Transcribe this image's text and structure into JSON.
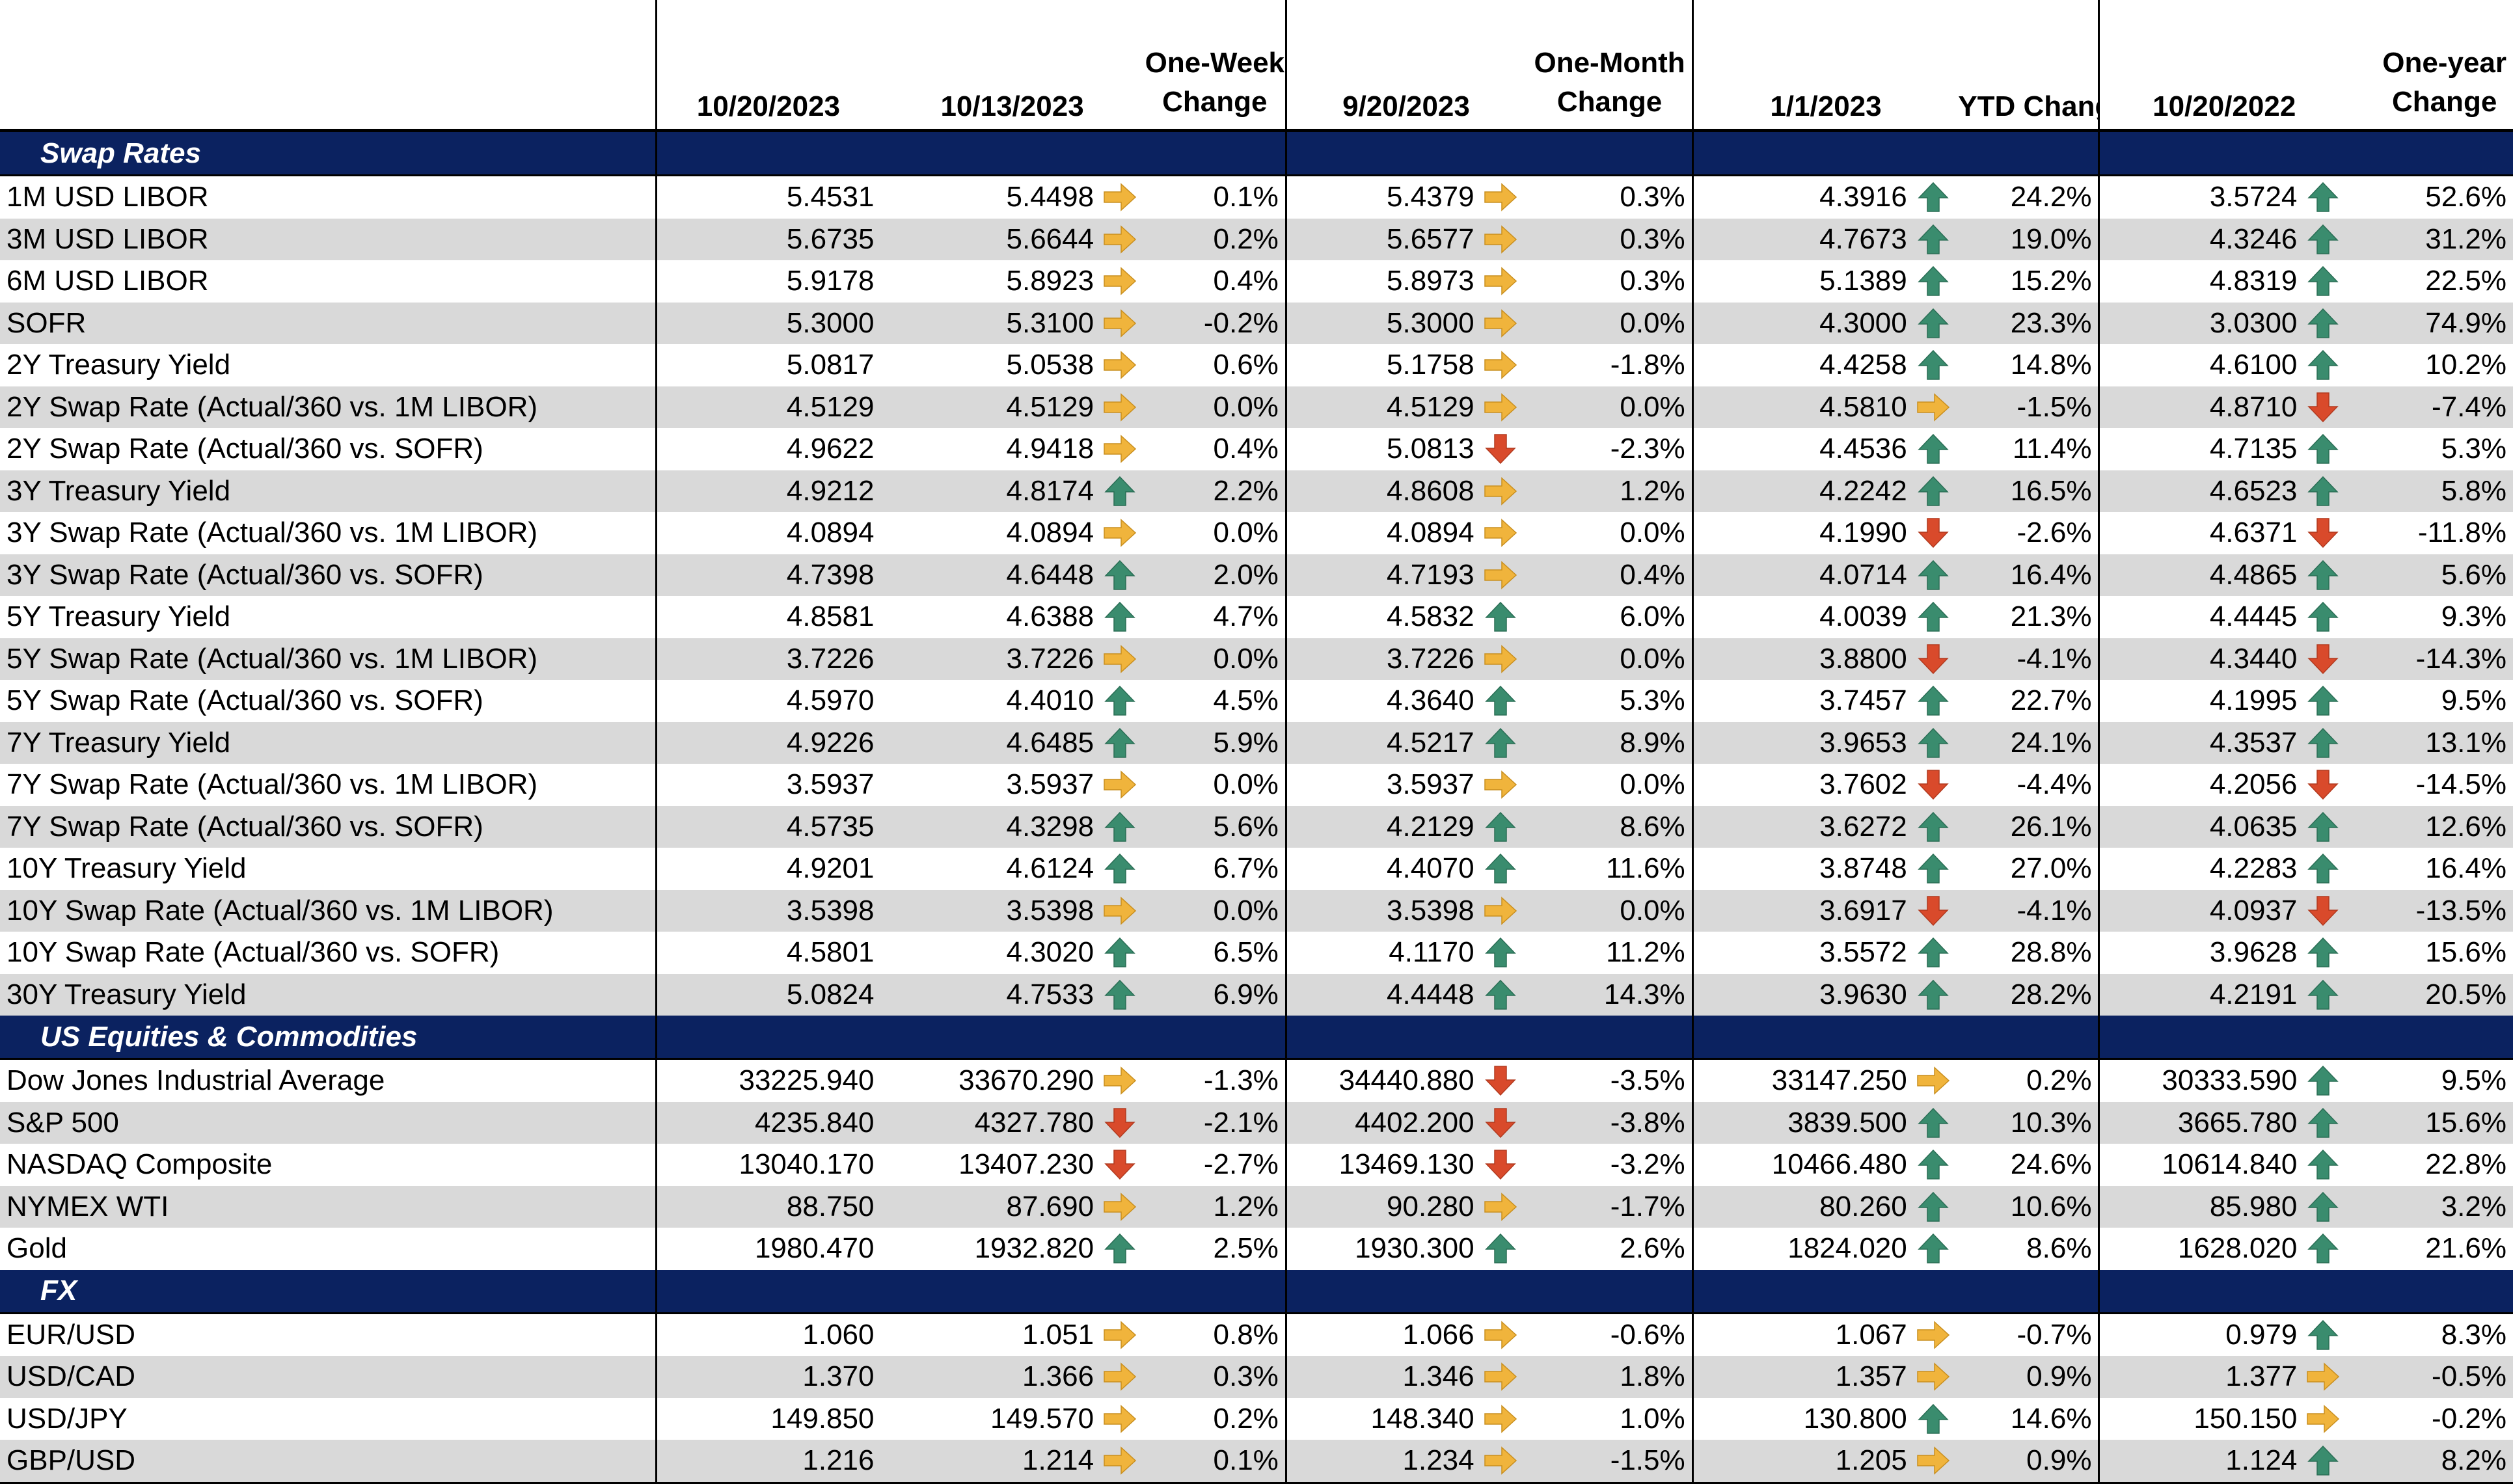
{
  "headers": {
    "c1": "10/20/2023",
    "c2": "10/13/2023",
    "c3a": "One-Week",
    "c3b": "Change",
    "c4": "9/20/2023",
    "c5a": "One-Month",
    "c5b": "Change",
    "c6": "1/1/2023",
    "c7": "YTD Change",
    "c8": "10/20/2022",
    "c9a": "One-year",
    "c9b": "Change"
  },
  "colors": {
    "section_bg": "#0b2260",
    "shade": "#d9d9d9",
    "up": "#3a8c6e",
    "down": "#d94a2b",
    "flat": "#f0b43c"
  },
  "sections": [
    {
      "title": "Swap Rates",
      "rows": [
        {
          "name": "1M USD LIBOR",
          "v1": "5.4531",
          "v2": "5.4498",
          "a2": "right",
          "p2": "0.1%",
          "v3": "5.4379",
          "a3": "right",
          "p3": "0.3%",
          "v4": "4.3916",
          "a4": "up",
          "p4": "24.2%",
          "v5": "3.5724",
          "a5": "up",
          "p5": "52.6%"
        },
        {
          "name": "3M USD LIBOR",
          "v1": "5.6735",
          "v2": "5.6644",
          "a2": "right",
          "p2": "0.2%",
          "v3": "5.6577",
          "a3": "right",
          "p3": "0.3%",
          "v4": "4.7673",
          "a4": "up",
          "p4": "19.0%",
          "v5": "4.3246",
          "a5": "up",
          "p5": "31.2%"
        },
        {
          "name": "6M USD LIBOR",
          "v1": "5.9178",
          "v2": "5.8923",
          "a2": "right",
          "p2": "0.4%",
          "v3": "5.8973",
          "a3": "right",
          "p3": "0.3%",
          "v4": "5.1389",
          "a4": "up",
          "p4": "15.2%",
          "v5": "4.8319",
          "a5": "up",
          "p5": "22.5%"
        },
        {
          "name": "SOFR",
          "v1": "5.3000",
          "v2": "5.3100",
          "a2": "right",
          "p2": "-0.2%",
          "v3": "5.3000",
          "a3": "right",
          "p3": "0.0%",
          "v4": "4.3000",
          "a4": "up",
          "p4": "23.3%",
          "v5": "3.0300",
          "a5": "up",
          "p5": "74.9%"
        },
        {
          "name": "2Y Treasury Yield",
          "v1": "5.0817",
          "v2": "5.0538",
          "a2": "right",
          "p2": "0.6%",
          "v3": "5.1758",
          "a3": "right",
          "p3": "-1.8%",
          "v4": "4.4258",
          "a4": "up",
          "p4": "14.8%",
          "v5": "4.6100",
          "a5": "up",
          "p5": "10.2%"
        },
        {
          "name": "2Y Swap Rate (Actual/360 vs. 1M LIBOR)",
          "v1": "4.5129",
          "v2": "4.5129",
          "a2": "right",
          "p2": "0.0%",
          "v3": "4.5129",
          "a3": "right",
          "p3": "0.0%",
          "v4": "4.5810",
          "a4": "right",
          "p4": "-1.5%",
          "v5": "4.8710",
          "a5": "down",
          "p5": "-7.4%"
        },
        {
          "name": "2Y Swap Rate (Actual/360 vs. SOFR)",
          "v1": "4.9622",
          "v2": "4.9418",
          "a2": "right",
          "p2": "0.4%",
          "v3": "5.0813",
          "a3": "down",
          "p3": "-2.3%",
          "v4": "4.4536",
          "a4": "up",
          "p4": "11.4%",
          "v5": "4.7135",
          "a5": "up",
          "p5": "5.3%"
        },
        {
          "name": "3Y Treasury Yield",
          "v1": "4.9212",
          "v2": "4.8174",
          "a2": "up",
          "p2": "2.2%",
          "v3": "4.8608",
          "a3": "right",
          "p3": "1.2%",
          "v4": "4.2242",
          "a4": "up",
          "p4": "16.5%",
          "v5": "4.6523",
          "a5": "up",
          "p5": "5.8%"
        },
        {
          "name": "3Y Swap Rate (Actual/360 vs. 1M LIBOR)",
          "v1": "4.0894",
          "v2": "4.0894",
          "a2": "right",
          "p2": "0.0%",
          "v3": "4.0894",
          "a3": "right",
          "p3": "0.0%",
          "v4": "4.1990",
          "a4": "down",
          "p4": "-2.6%",
          "v5": "4.6371",
          "a5": "down",
          "p5": "-11.8%"
        },
        {
          "name": "3Y Swap Rate (Actual/360 vs. SOFR)",
          "v1": "4.7398",
          "v2": "4.6448",
          "a2": "up",
          "p2": "2.0%",
          "v3": "4.7193",
          "a3": "right",
          "p3": "0.4%",
          "v4": "4.0714",
          "a4": "up",
          "p4": "16.4%",
          "v5": "4.4865",
          "a5": "up",
          "p5": "5.6%"
        },
        {
          "name": "5Y Treasury Yield",
          "v1": "4.8581",
          "v2": "4.6388",
          "a2": "up",
          "p2": "4.7%",
          "v3": "4.5832",
          "a3": "up",
          "p3": "6.0%",
          "v4": "4.0039",
          "a4": "up",
          "p4": "21.3%",
          "v5": "4.4445",
          "a5": "up",
          "p5": "9.3%"
        },
        {
          "name": "5Y Swap Rate (Actual/360 vs. 1M LIBOR)",
          "v1": "3.7226",
          "v2": "3.7226",
          "a2": "right",
          "p2": "0.0%",
          "v3": "3.7226",
          "a3": "right",
          "p3": "0.0%",
          "v4": "3.8800",
          "a4": "down",
          "p4": "-4.1%",
          "v5": "4.3440",
          "a5": "down",
          "p5": "-14.3%"
        },
        {
          "name": "5Y Swap Rate (Actual/360 vs. SOFR)",
          "v1": "4.5970",
          "v2": "4.4010",
          "a2": "up",
          "p2": "4.5%",
          "v3": "4.3640",
          "a3": "up",
          "p3": "5.3%",
          "v4": "3.7457",
          "a4": "up",
          "p4": "22.7%",
          "v5": "4.1995",
          "a5": "up",
          "p5": "9.5%"
        },
        {
          "name": "7Y Treasury Yield",
          "v1": "4.9226",
          "v2": "4.6485",
          "a2": "up",
          "p2": "5.9%",
          "v3": "4.5217",
          "a3": "up",
          "p3": "8.9%",
          "v4": "3.9653",
          "a4": "up",
          "p4": "24.1%",
          "v5": "4.3537",
          "a5": "up",
          "p5": "13.1%"
        },
        {
          "name": "7Y Swap Rate (Actual/360 vs. 1M LIBOR)",
          "v1": "3.5937",
          "v2": "3.5937",
          "a2": "right",
          "p2": "0.0%",
          "v3": "3.5937",
          "a3": "right",
          "p3": "0.0%",
          "v4": "3.7602",
          "a4": "down",
          "p4": "-4.4%",
          "v5": "4.2056",
          "a5": "down",
          "p5": "-14.5%"
        },
        {
          "name": "7Y Swap Rate (Actual/360 vs. SOFR)",
          "v1": "4.5735",
          "v2": "4.3298",
          "a2": "up",
          "p2": "5.6%",
          "v3": "4.2129",
          "a3": "up",
          "p3": "8.6%",
          "v4": "3.6272",
          "a4": "up",
          "p4": "26.1%",
          "v5": "4.0635",
          "a5": "up",
          "p5": "12.6%"
        },
        {
          "name": "10Y Treasury Yield",
          "v1": "4.9201",
          "v2": "4.6124",
          "a2": "up",
          "p2": "6.7%",
          "v3": "4.4070",
          "a3": "up",
          "p3": "11.6%",
          "v4": "3.8748",
          "a4": "up",
          "p4": "27.0%",
          "v5": "4.2283",
          "a5": "up",
          "p5": "16.4%"
        },
        {
          "name": "10Y Swap Rate (Actual/360 vs. 1M LIBOR)",
          "v1": "3.5398",
          "v2": "3.5398",
          "a2": "right",
          "p2": "0.0%",
          "v3": "3.5398",
          "a3": "right",
          "p3": "0.0%",
          "v4": "3.6917",
          "a4": "down",
          "p4": "-4.1%",
          "v5": "4.0937",
          "a5": "down",
          "p5": "-13.5%"
        },
        {
          "name": "10Y Swap Rate (Actual/360 vs. SOFR)",
          "v1": "4.5801",
          "v2": "4.3020",
          "a2": "up",
          "p2": "6.5%",
          "v3": "4.1170",
          "a3": "up",
          "p3": "11.2%",
          "v4": "3.5572",
          "a4": "up",
          "p4": "28.8%",
          "v5": "3.9628",
          "a5": "up",
          "p5": "15.6%"
        },
        {
          "name": "30Y Treasury Yield",
          "v1": "5.0824",
          "v2": "4.7533",
          "a2": "up",
          "p2": "6.9%",
          "v3": "4.4448",
          "a3": "up",
          "p3": "14.3%",
          "v4": "3.9630",
          "a4": "up",
          "p4": "28.2%",
          "v5": "4.2191",
          "a5": "up",
          "p5": "20.5%"
        }
      ]
    },
    {
      "title": "US Equities & Commodities",
      "rows": [
        {
          "name": "Dow Jones Industrial Average",
          "v1": "33225.940",
          "v2": "33670.290",
          "a2": "right",
          "p2": "-1.3%",
          "v3": "34440.880",
          "a3": "down",
          "p3": "-3.5%",
          "v4": "33147.250",
          "a4": "right",
          "p4": "0.2%",
          "v5": "30333.590",
          "a5": "up",
          "p5": "9.5%"
        },
        {
          "name": "S&P 500",
          "v1": "4235.840",
          "v2": "4327.780",
          "a2": "down",
          "p2": "-2.1%",
          "v3": "4402.200",
          "a3": "down",
          "p3": "-3.8%",
          "v4": "3839.500",
          "a4": "up",
          "p4": "10.3%",
          "v5": "3665.780",
          "a5": "up",
          "p5": "15.6%"
        },
        {
          "name": "NASDAQ Composite",
          "v1": "13040.170",
          "v2": "13407.230",
          "a2": "down",
          "p2": "-2.7%",
          "v3": "13469.130",
          "a3": "down",
          "p3": "-3.2%",
          "v4": "10466.480",
          "a4": "up",
          "p4": "24.6%",
          "v5": "10614.840",
          "a5": "up",
          "p5": "22.8%"
        },
        {
          "name": "NYMEX WTI",
          "v1": "88.750",
          "v2": "87.690",
          "a2": "right",
          "p2": "1.2%",
          "v3": "90.280",
          "a3": "right",
          "p3": "-1.7%",
          "v4": "80.260",
          "a4": "up",
          "p4": "10.6%",
          "v5": "85.980",
          "a5": "up",
          "p5": "3.2%"
        },
        {
          "name": "Gold",
          "v1": "1980.470",
          "v2": "1932.820",
          "a2": "up",
          "p2": "2.5%",
          "v3": "1930.300",
          "a3": "up",
          "p3": "2.6%",
          "v4": "1824.020",
          "a4": "up",
          "p4": "8.6%",
          "v5": "1628.020",
          "a5": "up",
          "p5": "21.6%"
        }
      ]
    },
    {
      "title": "FX",
      "rows": [
        {
          "name": "EUR/USD",
          "v1": "1.060",
          "v2": "1.051",
          "a2": "right",
          "p2": "0.8%",
          "v3": "1.066",
          "a3": "right",
          "p3": "-0.6%",
          "v4": "1.067",
          "a4": "right",
          "p4": "-0.7%",
          "v5": "0.979",
          "a5": "up",
          "p5": "8.3%"
        },
        {
          "name": "USD/CAD",
          "v1": "1.370",
          "v2": "1.366",
          "a2": "right",
          "p2": "0.3%",
          "v3": "1.346",
          "a3": "right",
          "p3": "1.8%",
          "v4": "1.357",
          "a4": "right",
          "p4": "0.9%",
          "v5": "1.377",
          "a5": "right",
          "p5": "-0.5%"
        },
        {
          "name": "USD/JPY",
          "v1": "149.850",
          "v2": "149.570",
          "a2": "right",
          "p2": "0.2%",
          "v3": "148.340",
          "a3": "right",
          "p3": "1.0%",
          "v4": "130.800",
          "a4": "up",
          "p4": "14.6%",
          "v5": "150.150",
          "a5": "right",
          "p5": "-0.2%"
        },
        {
          "name": "GBP/USD",
          "v1": "1.216",
          "v2": "1.214",
          "a2": "right",
          "p2": "0.1%",
          "v3": "1.234",
          "a3": "right",
          "p3": "-1.5%",
          "v4": "1.205",
          "a4": "right",
          "p4": "0.9%",
          "v5": "1.124",
          "a5": "up",
          "p5": "8.2%"
        }
      ]
    }
  ]
}
